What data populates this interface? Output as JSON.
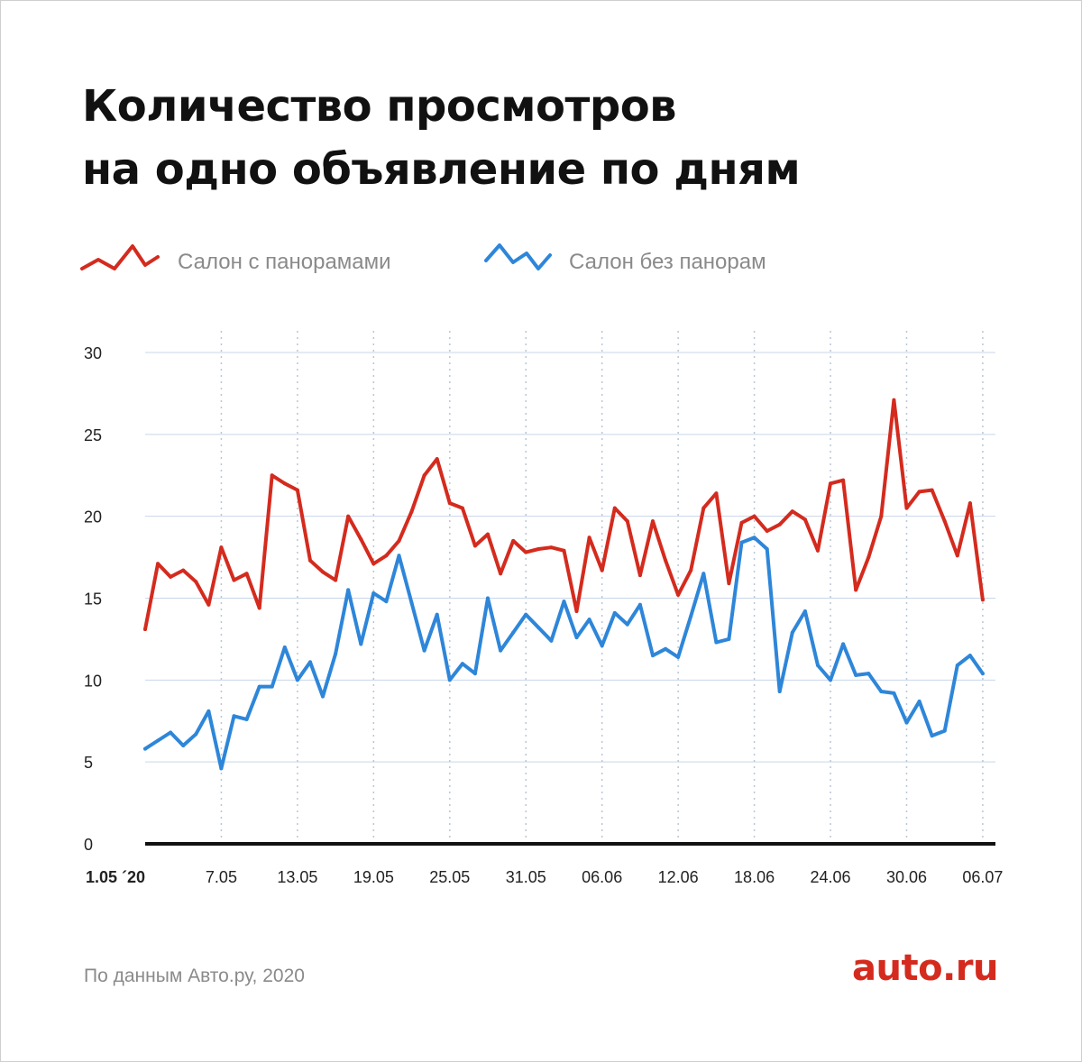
{
  "header": {
    "title_line1": "Количество просмотров",
    "title_line2": "на одно объявление по дням"
  },
  "footer": {
    "source": "По данным Авто.ру, 2020",
    "logo": "auto.ru"
  },
  "colors": {
    "red_series": "#d42b1e",
    "blue_series": "#2e86d9",
    "grid": "#c8d6e8",
    "axis": "#111111"
  },
  "chart_data": {
    "type": "line",
    "title": "Количество просмотров на одно объявление по дням",
    "xlabel": "",
    "ylabel": "",
    "ylim": [
      0,
      30
    ],
    "y_ticks": [
      "0",
      "5",
      "10",
      "15",
      "20",
      "25",
      "30"
    ],
    "x_ticks": [
      {
        "day": 0,
        "label": "1.05 ´20",
        "bold": true
      },
      {
        "day": 6,
        "label": "7.05"
      },
      {
        "day": 12,
        "label": "13.05"
      },
      {
        "day": 18,
        "label": "19.05"
      },
      {
        "day": 24,
        "label": "25.05"
      },
      {
        "day": 30,
        "label": "31.05"
      },
      {
        "day": 36,
        "label": "06.06"
      },
      {
        "day": 42,
        "label": "12.06"
      },
      {
        "day": 48,
        "label": "18.06"
      },
      {
        "day": 54,
        "label": "24.06"
      },
      {
        "day": 60,
        "label": "30.06"
      },
      {
        "day": 66,
        "label": "06.07"
      }
    ],
    "x_domain_days": [
      0,
      67
    ],
    "grid": true,
    "legend_position": "top",
    "series": [
      {
        "name": "Салон с панорамами",
        "color": "#d42b1e",
        "values": [
          13.1,
          17.1,
          16.3,
          16.7,
          16.0,
          14.6,
          18.1,
          16.1,
          16.5,
          14.4,
          22.5,
          22.0,
          21.6,
          17.3,
          16.6,
          16.1,
          20.0,
          18.6,
          17.1,
          17.6,
          18.5,
          20.3,
          22.5,
          23.5,
          20.8,
          20.5,
          18.2,
          18.9,
          16.5,
          18.5,
          17.8,
          18.0,
          18.1,
          17.9,
          14.2,
          18.7,
          16.7,
          20.5,
          19.7,
          16.4,
          19.7,
          17.3,
          15.2,
          16.7,
          20.5,
          21.4,
          15.9,
          19.6,
          20.0,
          19.1,
          19.5,
          20.3,
          19.8,
          17.9,
          22.0,
          22.2,
          15.5,
          17.5,
          20.0,
          27.1,
          20.5,
          21.5,
          21.6,
          19.7,
          17.6,
          20.8,
          14.9
        ]
      },
      {
        "name": "Салон без панорам",
        "color": "#2e86d9",
        "values": [
          5.8,
          6.3,
          6.8,
          6.0,
          6.7,
          8.1,
          4.6,
          7.8,
          7.6,
          9.6,
          9.6,
          12.0,
          10.0,
          11.1,
          9.0,
          11.6,
          15.5,
          12.2,
          15.3,
          14.8,
          17.6,
          14.7,
          11.8,
          14.0,
          10.0,
          11.0,
          10.4,
          15.0,
          11.8,
          12.9,
          14.0,
          13.2,
          12.4,
          14.8,
          12.6,
          13.7,
          12.1,
          14.1,
          13.4,
          14.6,
          11.5,
          11.9,
          11.4,
          13.9,
          16.5,
          12.3,
          12.5,
          18.4,
          18.7,
          18.0,
          9.3,
          12.9,
          14.2,
          10.9,
          10.0,
          12.2,
          10.3,
          10.4,
          9.3,
          9.2,
          7.4,
          8.7,
          6.6,
          6.9,
          10.9,
          11.5,
          10.4
        ]
      }
    ]
  }
}
